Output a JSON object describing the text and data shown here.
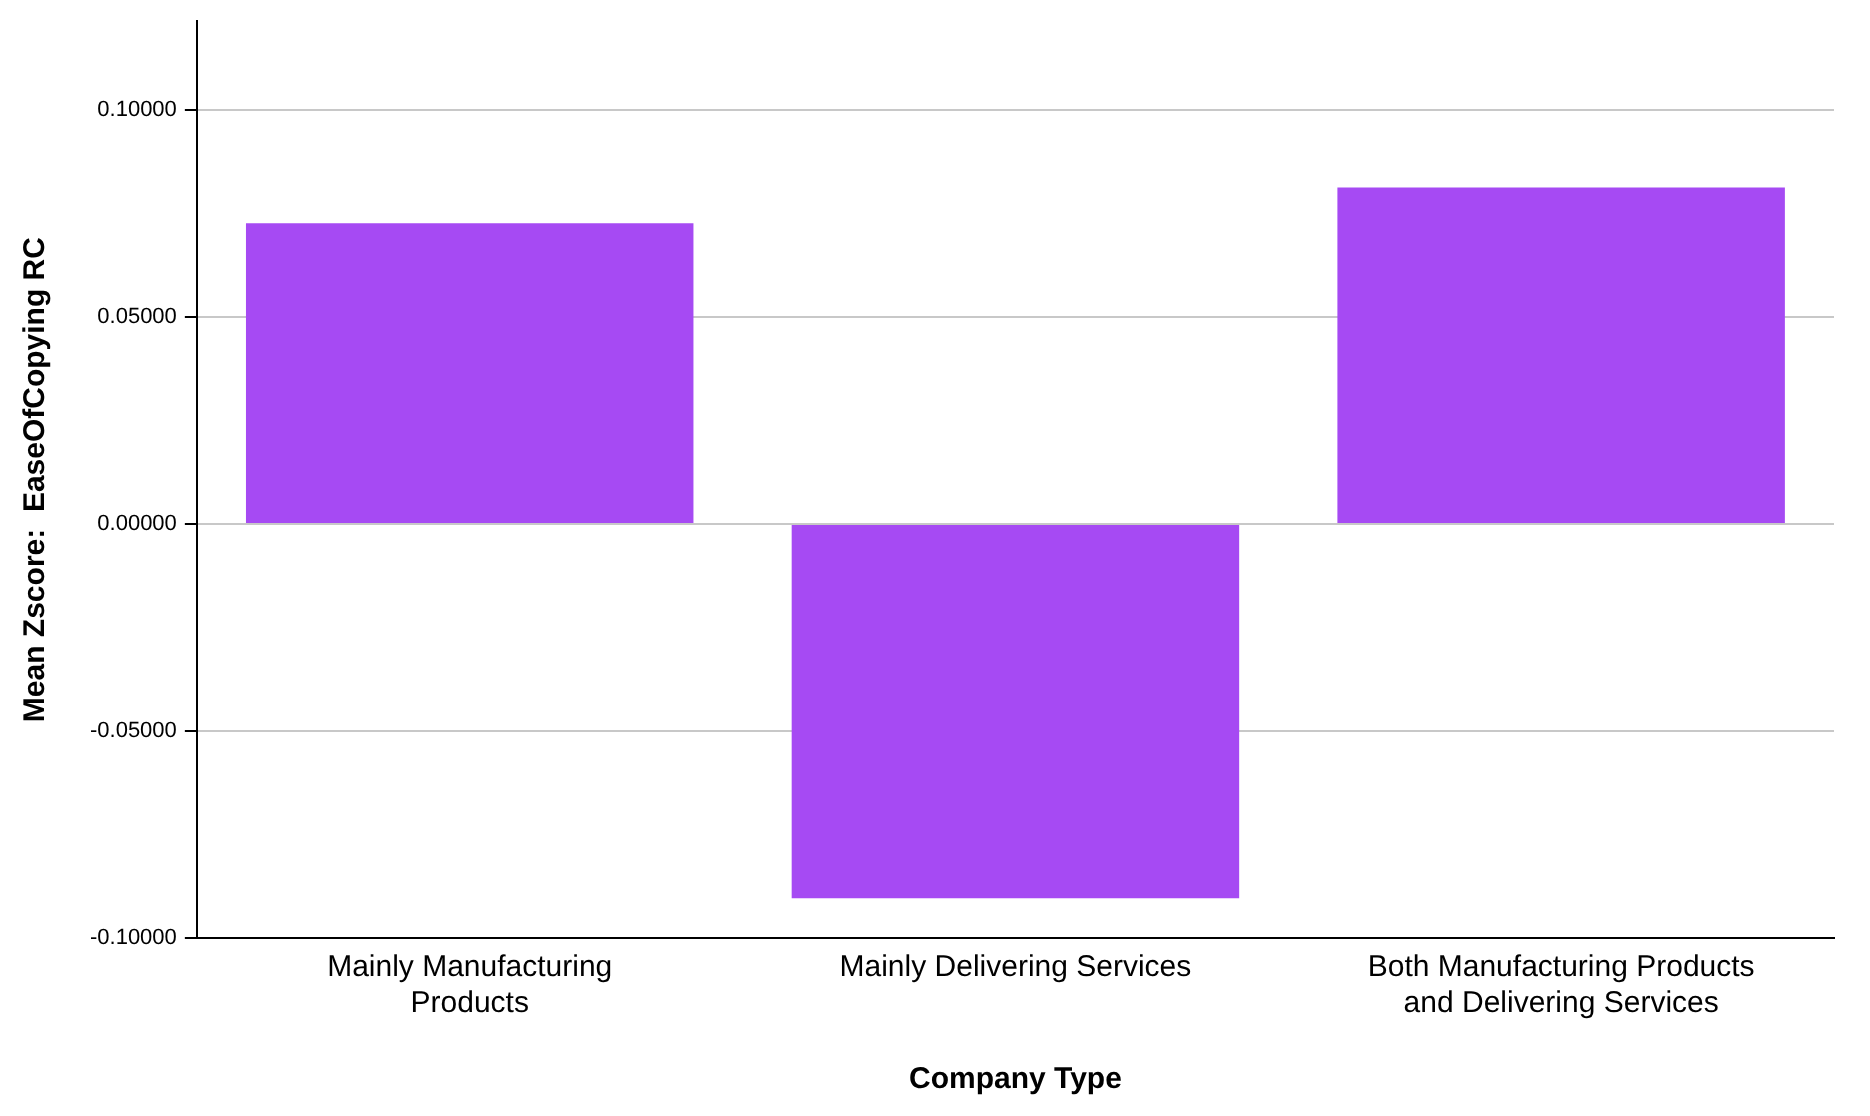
{
  "chart_data": {
    "type": "bar",
    "xlabel": "Company Type",
    "ylabel": "Mean Zscore:  EaseOfCopying RC",
    "categories": [
      "Mainly Manufacturing Products",
      "Mainly Delivering Services",
      "Both Manufacturing Products and Delivering Services"
    ],
    "values": [
      0.0727,
      -0.0904,
      0.0813
    ],
    "color": "#a64af3",
    "ylim": [
      -0.1,
      0.1215
    ],
    "yticks": [
      {
        "value": -0.1,
        "label": "-0.10000"
      },
      {
        "value": -0.05,
        "label": "-0.05000"
      },
      {
        "value": 0,
        "label": "0.00000"
      },
      {
        "value": 0.05,
        "label": "0.05000"
      },
      {
        "value": 0.1,
        "label": "0.10000"
      }
    ],
    "grid": "y",
    "legend": false
  }
}
